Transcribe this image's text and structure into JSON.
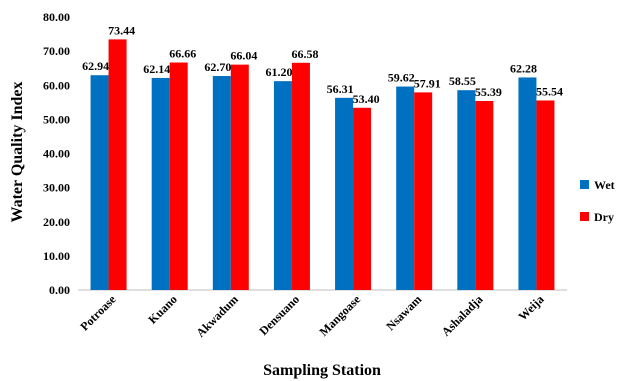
{
  "chart_data": {
    "type": "bar",
    "title": "",
    "xlabel": "Sampling Station",
    "ylabel": "Water Quality Index",
    "ylim": [
      0,
      80
    ],
    "yticks": [
      "0.00",
      "10.00",
      "20.00",
      "30.00",
      "40.00",
      "50.00",
      "60.00",
      "70.00",
      "80.00"
    ],
    "grid": false,
    "legend_position": "right",
    "categories": [
      "Potroase",
      "Kuano",
      "Akwadum",
      "Densuano",
      "Mangoase",
      "Nsawam",
      "Ashaladja",
      "Weija"
    ],
    "series": [
      {
        "name": "Wet",
        "color": "#0070C0",
        "values": [
          62.94,
          62.14,
          62.7,
          61.2,
          56.31,
          59.62,
          58.55,
          62.28
        ],
        "labels": [
          "62.94",
          "62.14",
          "62.70",
          "61.20",
          "56.31",
          "59.62",
          "58.55",
          "62.28"
        ]
      },
      {
        "name": "Dry",
        "color": "#FF0000",
        "values": [
          73.44,
          66.66,
          66.04,
          66.58,
          53.4,
          57.91,
          55.39,
          55.54
        ],
        "labels": [
          "73.44",
          "66.66",
          "66.04",
          "66.58",
          "53.40",
          "57.91",
          "55.39",
          "55.54"
        ]
      }
    ]
  }
}
